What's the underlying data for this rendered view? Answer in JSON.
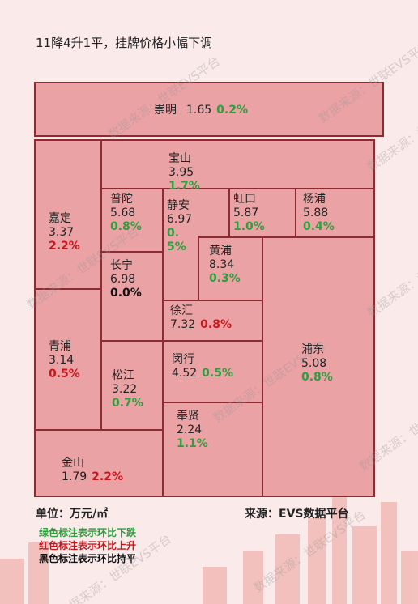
{
  "header": {
    "title": "11降4升1平，挂牌价格小幅下调"
  },
  "nodes": [
    {
      "name": "崇明",
      "price": "1.65",
      "change": "0.2%",
      "color": "#2e9e3e"
    },
    {
      "name": "宝山",
      "price": "3.95",
      "change": "1.7%",
      "color": "#2e9e3e"
    },
    {
      "name": "嘉定",
      "price": "3.37",
      "change": "2.2%",
      "color": "#c8161d"
    },
    {
      "name": "普陀",
      "price": "5.68",
      "change": "0.8%",
      "color": "#2e9e3e"
    },
    {
      "name": "静安",
      "price": "6.97",
      "change": "0.5%",
      "color": "#2e9e3e"
    },
    {
      "name": "虹口",
      "price": "5.87",
      "change": "1.0%",
      "color": "#2e9e3e"
    },
    {
      "name": "杨浦",
      "price": "5.88",
      "change": "0.4%",
      "color": "#2e9e3e"
    },
    {
      "name": "长宁",
      "price": "6.98",
      "change": "0.0%",
      "color": "#111111"
    },
    {
      "name": "黄浦",
      "price": "8.34",
      "change": "0.3%",
      "color": "#2e9e3e"
    },
    {
      "name": "徐汇",
      "price": "7.32",
      "change": "0.8%",
      "color": "#c8161d"
    },
    {
      "name": "浦东",
      "price": "5.08",
      "change": "0.8%",
      "color": "#2e9e3e"
    },
    {
      "name": "青浦",
      "price": "3.14",
      "change": "0.5%",
      "color": "#c8161d"
    },
    {
      "name": "松江",
      "price": "3.22",
      "change": "0.7%",
      "color": "#2e9e3e"
    },
    {
      "name": "闵行",
      "price": "4.52",
      "change": "0.5%",
      "color": "#2e9e3e"
    },
    {
      "name": "奉贤",
      "price": "2.24",
      "change": "1.1%",
      "color": "#2e9e3e"
    },
    {
      "name": "金山",
      "price": "1.79",
      "change": "2.2%",
      "color": "#c8161d"
    }
  ],
  "footer": {
    "unit": "单位：万元/㎡",
    "source": "来源：EVS数据平台",
    "legend": [
      {
        "text": "绿色标注表示环比下跌",
        "color": "#2e9e3e"
      },
      {
        "text": "红色标注表示环比上升",
        "color": "#c8161d"
      },
      {
        "text": "黑色标注表示环比持平",
        "color": "#111111"
      }
    ]
  },
  "watermark": "数据来源：世联EVS平台"
}
